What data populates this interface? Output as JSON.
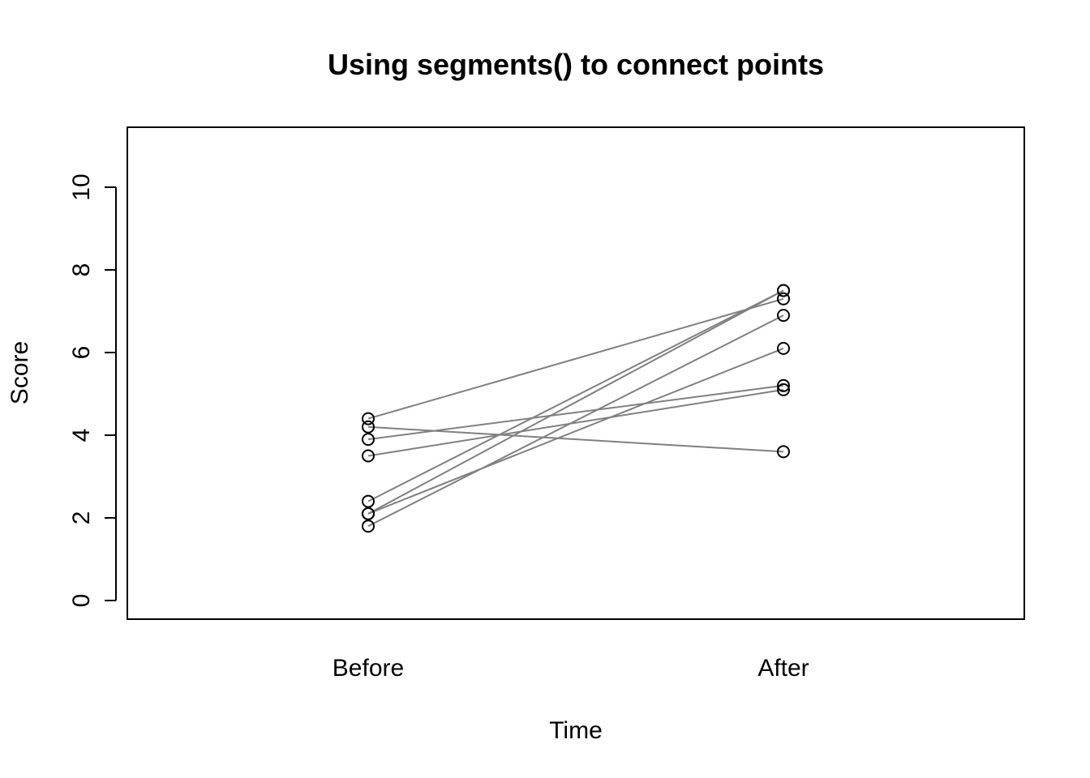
{
  "chart_data": {
    "type": "scatter",
    "title": "Using segments() to connect points",
    "xlabel": "Time",
    "ylabel": "Score",
    "categories": [
      "Before",
      "After"
    ],
    "ylim": [
      0,
      10
    ],
    "yticks": [
      "0",
      "2",
      "4",
      "6",
      "8",
      "10"
    ],
    "grid": false,
    "pairs": [
      {
        "before": 4.4,
        "after": 7.3
      },
      {
        "before": 4.2,
        "after": 3.6
      },
      {
        "before": 3.9,
        "after": 5.2
      },
      {
        "before": 3.5,
        "after": 5.1
      },
      {
        "before": 2.4,
        "after": 7.5
      },
      {
        "before": 2.1,
        "after": 7.5
      },
      {
        "before": 2.1,
        "after": 6.1
      },
      {
        "before": 1.8,
        "after": 6.9
      }
    ],
    "colors": {
      "segment": "#808080",
      "point": "#000000"
    }
  }
}
